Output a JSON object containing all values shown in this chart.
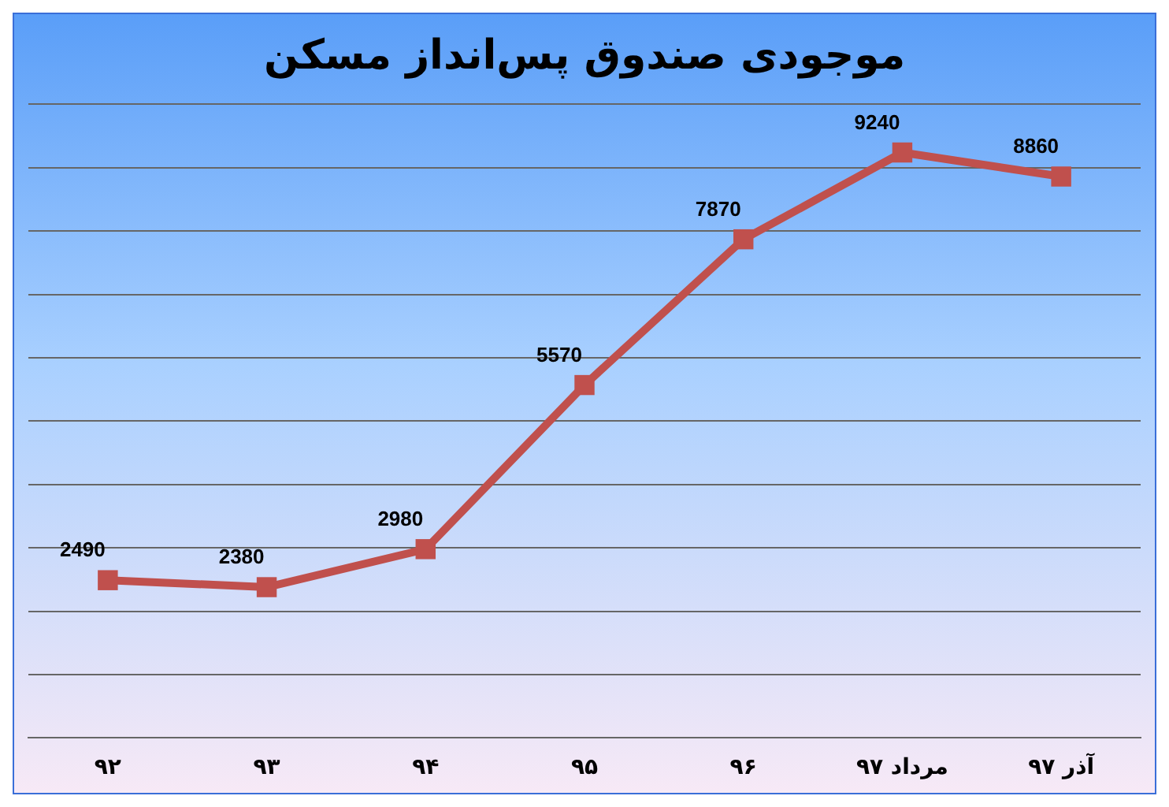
{
  "chart_data": {
    "type": "line",
    "title": "موجودی صندوق پس‌انداز مسکن",
    "categories": [
      "۹۲",
      "۹۳",
      "۹۴",
      "۹۵",
      "۹۶",
      "مرداد ۹۷",
      "آذر ۹۷"
    ],
    "series": [
      {
        "color": "#c0504d",
        "values": [
          2490,
          2380,
          2980,
          5570,
          7870,
          9240,
          8860
        ]
      }
    ],
    "ylim": [
      0,
      10000
    ],
    "yticks": [
      {
        "value": 0,
        "label": null
      },
      {
        "value": 1000,
        "label": null
      },
      {
        "value": 2000,
        "label": null
      },
      {
        "value": 3000,
        "label": null
      },
      {
        "value": 4000,
        "label": null
      },
      {
        "value": 5000,
        "label": null
      },
      {
        "value": 6000,
        "label": null
      },
      {
        "value": 7000,
        "label": null
      },
      {
        "value": 8000,
        "label": null
      },
      {
        "value": 9000,
        "label": null
      },
      {
        "value": 10000,
        "label": null
      }
    ],
    "tick_labels": "x",
    "grid": "y",
    "legend": false,
    "marker": "square",
    "line_style": "solid",
    "data_labels": true
  }
}
